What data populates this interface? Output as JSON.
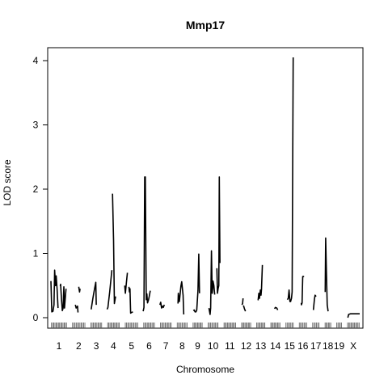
{
  "chart_data": {
    "type": "line",
    "title": "Mmp17",
    "xlabel": "Chromosome",
    "ylabel": "LOD score",
    "ylim": [
      0,
      4.2
    ],
    "y_ticks": [
      0,
      1,
      2,
      3,
      4
    ],
    "grid": false,
    "legend": "none",
    "line_color": "#000000",
    "chromosomes": [
      "1",
      "2",
      "3",
      "4",
      "5",
      "6",
      "7",
      "8",
      "9",
      "10",
      "11",
      "12",
      "13",
      "14",
      "15",
      "16",
      "17",
      "18",
      "19",
      "X"
    ],
    "chromosome_lengths_cM": [
      95,
      80,
      70,
      75,
      80,
      70,
      70,
      65,
      60,
      65,
      75,
      60,
      55,
      60,
      50,
      50,
      45,
      40,
      35,
      75
    ],
    "series": [
      {
        "chromosome": "1",
        "points": [
          [
            0,
            0.57
          ],
          [
            5,
            0.09
          ],
          [
            12,
            0.1
          ],
          [
            18,
            0.2
          ],
          [
            22,
            0.74
          ],
          [
            27,
            0.5
          ],
          [
            31,
            0.65
          ],
          [
            36,
            0.45
          ],
          [
            42,
            0.15
          ]
        ]
      },
      {
        "chromosome": "1",
        "points": [
          [
            55,
            0.49
          ],
          [
            57,
            0.52
          ],
          [
            62,
            0.3
          ],
          [
            67,
            0.11
          ],
          [
            72,
            0.15
          ],
          [
            76,
            0.48
          ],
          [
            80,
            0.15
          ],
          [
            86,
            0.36
          ],
          [
            89,
            0.45
          ]
        ]
      },
      {
        "chromosome": "2",
        "points": [
          [
            20,
            0.2
          ],
          [
            25,
            0.15
          ],
          [
            33,
            0.18
          ],
          [
            36,
            0.08
          ]
        ]
      },
      {
        "chromosome": "2",
        "points": [
          [
            40,
            0.48
          ],
          [
            45,
            0.4
          ],
          [
            48,
            0.45
          ]
        ]
      },
      {
        "chromosome": "3",
        "points": [
          [
            5,
            0.13
          ],
          [
            15,
            0.3
          ],
          [
            25,
            0.45
          ],
          [
            32,
            0.55
          ],
          [
            35,
            0.2
          ]
        ]
      },
      {
        "chromosome": "4",
        "points": [
          [
            0,
            0.13
          ],
          [
            5,
            0.16
          ],
          [
            15,
            0.4
          ],
          [
            28,
            0.74
          ]
        ]
      },
      {
        "chromosome": "4",
        "points": [
          [
            32,
            1.93
          ],
          [
            38,
            1.2
          ],
          [
            43,
            0.22
          ],
          [
            50,
            0.33
          ]
        ]
      },
      {
        "chromosome": "5",
        "points": [
          [
            0,
            0.5
          ],
          [
            4,
            0.38
          ],
          [
            10,
            0.55
          ],
          [
            16,
            0.7
          ]
        ]
      },
      {
        "chromosome": "5",
        "points": [
          [
            25,
            0.48
          ],
          [
            28,
            0.4
          ],
          [
            31,
            0.45
          ],
          [
            35,
            0.07
          ],
          [
            40,
            0.08
          ],
          [
            48,
            0.09
          ]
        ]
      },
      {
        "chromosome": "6",
        "points": [
          [
            0,
            0.1
          ],
          [
            5,
            0.16
          ],
          [
            9,
            2.19
          ],
          [
            13,
            2.19
          ],
          [
            18,
            0.28
          ],
          [
            22,
            0.37
          ],
          [
            26,
            0.23
          ],
          [
            32,
            0.28
          ],
          [
            36,
            0.33
          ],
          [
            42,
            0.42
          ]
        ]
      },
      {
        "chromosome": "7",
        "points": [
          [
            0,
            0.2
          ],
          [
            5,
            0.24
          ],
          [
            10,
            0.15
          ],
          [
            15,
            0.18
          ],
          [
            20,
            0.16
          ],
          [
            26,
            0.2
          ]
        ]
      },
      {
        "chromosome": "8",
        "points": [
          [
            8,
            0.22
          ],
          [
            10,
            0.38
          ],
          [
            16,
            0.25
          ],
          [
            25,
            0.49
          ],
          [
            30,
            0.56
          ],
          [
            38,
            0.35
          ],
          [
            42,
            0.05
          ]
        ]
      },
      {
        "chromosome": "9",
        "points": [
          [
            5,
            0.11
          ],
          [
            10,
            0.12
          ],
          [
            15,
            0.09
          ],
          [
            20,
            0.09
          ],
          [
            25,
            0.12
          ],
          [
            32,
            0.42
          ],
          [
            37,
            0.99
          ],
          [
            41,
            0.38
          ]
        ]
      },
      {
        "chromosome": "10",
        "points": [
          [
            8,
            0.15
          ],
          [
            15,
            0.05
          ],
          [
            18,
            0.15
          ],
          [
            23,
            1.04
          ],
          [
            27,
            0.38
          ],
          [
            30,
            0.45
          ],
          [
            32,
            0.57
          ],
          [
            37,
            0.5
          ],
          [
            42,
            0.36
          ]
        ]
      },
      {
        "chromosome": "10",
        "points": [
          [
            55,
            0.77
          ],
          [
            58,
            0.38
          ],
          [
            62,
            0.45
          ],
          [
            66,
            0.5
          ],
          [
            69,
            2.19
          ],
          [
            73,
            0.85
          ]
        ]
      },
      {
        "chromosome": "12",
        "points": [
          [
            5,
            0.2
          ],
          [
            9,
            0.22
          ],
          [
            12,
            0.3
          ]
        ]
      },
      {
        "chromosome": "12",
        "points": [
          [
            14,
            0.19
          ],
          [
            20,
            0.14
          ],
          [
            26,
            0.1
          ]
        ]
      },
      {
        "chromosome": "13",
        "points": [
          [
            12,
            0.27
          ],
          [
            16,
            0.38
          ],
          [
            20,
            0.3
          ],
          [
            25,
            0.43
          ],
          [
            29,
            0.35
          ],
          [
            32,
            0.44
          ],
          [
            37,
            0.82
          ]
        ]
      },
      {
        "chromosome": "14",
        "points": [
          [
            25,
            0.14
          ],
          [
            30,
            0.16
          ],
          [
            38,
            0.15
          ],
          [
            44,
            0.12
          ]
        ]
      },
      {
        "chromosome": "15",
        "points": [
          [
            12,
            0.28
          ],
          [
            17,
            0.3
          ],
          [
            22,
            0.43
          ],
          [
            27,
            0.25
          ],
          [
            31,
            0.25
          ],
          [
            36,
            0.3
          ],
          [
            40,
            0.4
          ],
          [
            46,
            4.05
          ]
        ]
      },
      {
        "chromosome": "16",
        "points": [
          [
            15,
            0.23
          ],
          [
            16,
            0.2
          ],
          [
            20,
            0.23
          ],
          [
            24,
            0.64
          ],
          [
            32,
            0.64
          ]
        ]
      },
      {
        "chromosome": "17",
        "points": [
          [
            8,
            0.12
          ],
          [
            14,
            0.29
          ],
          [
            18,
            0.35
          ],
          [
            24,
            0.33
          ]
        ]
      },
      {
        "chromosome": "18",
        "points": [
          [
            4,
            0.4
          ],
          [
            7,
            1.24
          ],
          [
            11,
            0.72
          ],
          [
            16,
            0.2
          ],
          [
            21,
            0.1
          ]
        ]
      },
      {
        "chromosome": "X",
        "points": [
          [
            5,
            0.0
          ],
          [
            10,
            0.05
          ],
          [
            20,
            0.06
          ],
          [
            30,
            0.06
          ],
          [
            45,
            0.06
          ],
          [
            65,
            0.06
          ],
          [
            75,
            0.06
          ]
        ]
      }
    ]
  }
}
